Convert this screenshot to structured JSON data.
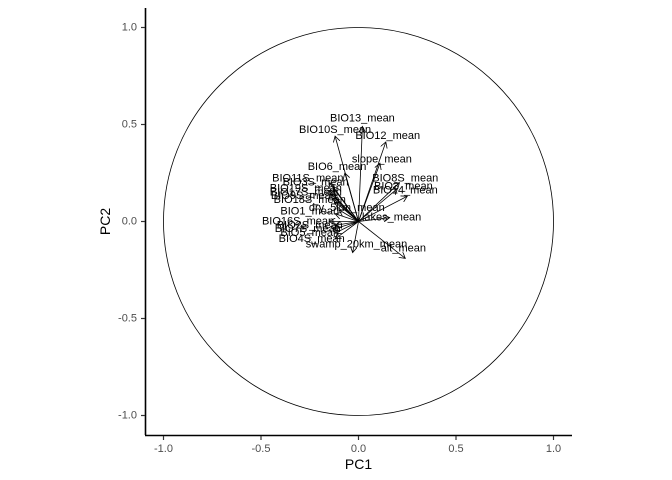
{
  "chart_data": {
    "type": "biplot",
    "xlabel": "PC1",
    "ylabel": "PC2",
    "xlim": [
      -1.1,
      1.1
    ],
    "ylim": [
      -1.1,
      1.1
    ],
    "x_ticks": [
      -1.0,
      -0.5,
      0.0,
      0.5,
      1.0
    ],
    "x_tick_labels": [
      "-1.0",
      "-0.5",
      "0.0",
      "0.5",
      "1.0"
    ],
    "y_ticks": [
      -1.0,
      -0.5,
      0.0,
      0.5,
      1.0
    ],
    "y_tick_labels": [
      "-1.0",
      "-0.5",
      "0.0",
      "0.5",
      "1.0"
    ],
    "unit_circle": true,
    "grid": false,
    "vectors": [
      {
        "name": "BIO13_mean",
        "x": 0.02,
        "y": 0.49,
        "lx": 0.02,
        "ly": 0.53
      },
      {
        "name": "BIO12_mean",
        "x": 0.14,
        "y": 0.41,
        "lx": 0.15,
        "ly": 0.44
      },
      {
        "name": "BIO10S_mean",
        "x": -0.12,
        "y": 0.44,
        "lx": -0.12,
        "ly": 0.47
      },
      {
        "name": "slope_mean",
        "x": 0.11,
        "y": 0.3,
        "lx": 0.12,
        "ly": 0.32
      },
      {
        "name": "BIO6_mean",
        "x": -0.07,
        "y": 0.25,
        "lx": -0.11,
        "ly": 0.28
      },
      {
        "name": "BIO8S_mean",
        "x": 0.21,
        "y": 0.2,
        "lx": 0.24,
        "ly": 0.22
      },
      {
        "name": "BIO3_mean",
        "x": 0.2,
        "y": 0.17,
        "lx": 0.23,
        "ly": 0.18
      },
      {
        "name": "BIO14_mean",
        "x": 0.25,
        "y": 0.13,
        "lx": 0.24,
        "ly": 0.16
      },
      {
        "name": "BIO11S_mean",
        "x": -0.15,
        "y": 0.2,
        "lx": -0.26,
        "ly": 0.22
      },
      {
        "name": "BIO3S_mean",
        "x": -0.13,
        "y": 0.18,
        "lx": -0.22,
        "ly": 0.2
      },
      {
        "name": "BIO19S_mean",
        "x": -0.15,
        "y": 0.16,
        "lx": -0.27,
        "ly": 0.17
      },
      {
        "name": "BIO17S_mean",
        "x": -0.14,
        "y": 0.14,
        "lx": -0.27,
        "ly": 0.15
      },
      {
        "name": "BIO9S_mean",
        "x": -0.13,
        "y": 0.12,
        "lx": -0.28,
        "ly": 0.13
      },
      {
        "name": "BIO18S_mean",
        "x": -0.12,
        "y": 0.1,
        "lx": -0.25,
        "ly": 0.11
      },
      {
        "name": "dry_5km_mean",
        "x": -0.1,
        "y": 0.06,
        "lx": -0.06,
        "ly": 0.07
      },
      {
        "name": "lakes_mean",
        "x": 0.16,
        "y": 0.02,
        "lx": 0.17,
        "ly": 0.02
      },
      {
        "name": "BIO1_mean",
        "x": -0.12,
        "y": 0.04,
        "lx": -0.25,
        "ly": 0.05
      },
      {
        "name": "BIO16S_mean",
        "x": -0.15,
        "y": 0.0,
        "lx": -0.31,
        "ly": 0.0
      },
      {
        "name": "BIO2S_mean",
        "x": -0.12,
        "y": -0.02,
        "lx": -0.25,
        "ly": -0.02
      },
      {
        "name": "BIO7S_mean",
        "x": -0.13,
        "y": -0.04,
        "lx": -0.26,
        "ly": -0.04
      },
      {
        "name": "BIO5_mean",
        "x": -0.12,
        "y": -0.06,
        "lx": -0.25,
        "ly": -0.06
      },
      {
        "name": "BIO4S_mean",
        "x": -0.12,
        "y": -0.09,
        "lx": -0.24,
        "ly": -0.09
      },
      {
        "name": "swamp_20km_mean",
        "x": -0.03,
        "y": -0.16,
        "lx": -0.01,
        "ly": -0.12
      },
      {
        "name": "alt_mean",
        "x": 0.24,
        "y": -0.19,
        "lx": 0.23,
        "ly": -0.14
      }
    ]
  }
}
